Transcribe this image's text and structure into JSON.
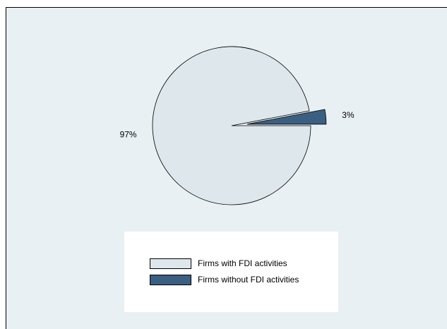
{
  "colors": {
    "plot_background": "#e9f0f3",
    "outer_background": "#ffffff",
    "border": "#000000"
  },
  "chart_data": {
    "type": "pie",
    "slices": [
      {
        "label": "Firms with FDI activities",
        "value": 97,
        "value_label": "97%",
        "color": "#dde7ec",
        "exploded": false
      },
      {
        "label": "Firms without FDI activities",
        "value": 3,
        "value_label": "3%",
        "color": "#3a5f82",
        "exploded": true
      }
    ],
    "legend": {
      "position": "bottom",
      "entries": [
        "Firms with FDI activities",
        "Firms without FDI activities"
      ]
    },
    "title": "",
    "start_angle_deg": 0,
    "direction": "clockwise"
  }
}
